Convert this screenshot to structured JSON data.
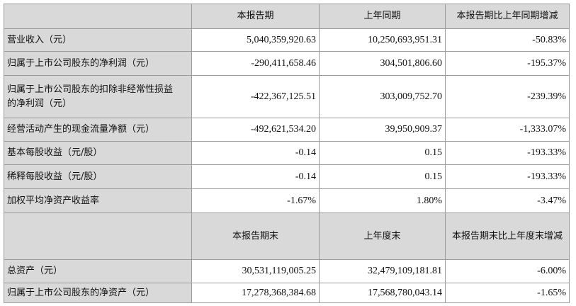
{
  "table": {
    "header": [
      "本报告期",
      "上年同期",
      "本报告期比上年同期增减"
    ],
    "rows": [
      [
        "营业收入（元）",
        "5,040,359,920.63",
        "10,250,693,951.31",
        "-50.83%"
      ],
      [
        "归属于上市公司股东的净利润（元）",
        "-290,411,658.46",
        "304,501,806.60",
        "-195.37%"
      ],
      [
        "归属于上市公司股东的扣除非经常性损益的净利润（元）",
        "-422,367,125.51",
        "303,009,752.70",
        "-239.39%"
      ],
      [
        "经营活动产生的现金流量净额（元）",
        "-492,621,534.20",
        "39,950,909.37",
        "-1,333.07%"
      ],
      [
        "基本每股收益（元/股）",
        "-0.14",
        "0.15",
        "-193.33%"
      ],
      [
        "稀释每股收益（元/股）",
        "-0.14",
        "0.15",
        "-193.33%"
      ],
      [
        "加权平均净资产收益率",
        "-1.67%",
        "1.80%",
        "-3.47%"
      ]
    ],
    "header2": [
      "本报告期末",
      "上年度末",
      "本报告期末比上年度末增减"
    ],
    "rows2": [
      [
        "总资产（元）",
        "30,531,119,005.25",
        "32,479,109,181.81",
        "-6.00%"
      ],
      [
        "归属于上市公司股东的净资产（元）",
        "17,278,368,384.68",
        "17,568,780,043.14",
        "-1.65%"
      ]
    ]
  }
}
